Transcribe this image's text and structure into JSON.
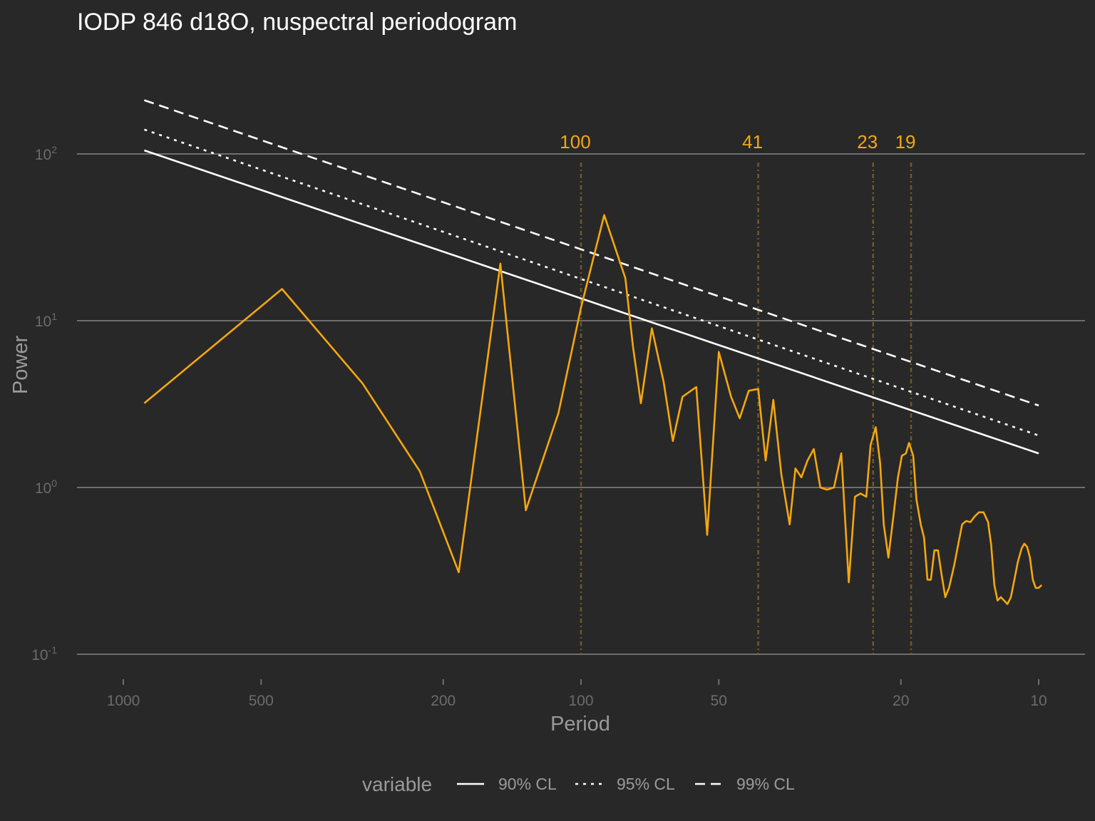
{
  "chart_data": {
    "type": "line",
    "title": "IODP 846 d18O, nuspectral periodogram",
    "xlabel": "Period",
    "ylabel": "Power",
    "x_scale": "reversed-log",
    "y_scale": "log",
    "xlim": [
      1200,
      9
    ],
    "ylim": [
      0.08,
      320
    ],
    "x_ticks": [
      {
        "value": 1000,
        "label": "1000"
      },
      {
        "value": 500,
        "label": "500"
      },
      {
        "value": 200,
        "label": "200"
      },
      {
        "value": 100,
        "label": "100"
      },
      {
        "value": 50,
        "label": "50"
      },
      {
        "value": 20,
        "label": "20"
      },
      {
        "value": 10,
        "label": "10"
      }
    ],
    "y_ticks": [
      {
        "value": 100,
        "base": "10",
        "exp": "2"
      },
      {
        "value": 10,
        "base": "10",
        "exp": "1"
      },
      {
        "value": 1,
        "base": "10",
        "exp": "0"
      },
      {
        "value": 0.1,
        "base": "10",
        "exp": "-1"
      }
    ],
    "reference_periods": [
      {
        "value": 100,
        "label": "100"
      },
      {
        "value": 41,
        "label": "41"
      },
      {
        "value": 23,
        "label": "23"
      },
      {
        "value": 19,
        "label": "19"
      }
    ],
    "periodogram": {
      "color": "#f5a70f",
      "points": [
        [
          900,
          3.2
        ],
        [
          450,
          15.5
        ],
        [
          300,
          4.2
        ],
        [
          225,
          1.25
        ],
        [
          185,
          0.31
        ],
        [
          150,
          22
        ],
        [
          132,
          0.73
        ],
        [
          112,
          2.8
        ],
        [
          100,
          12
        ],
        [
          89,
          43
        ],
        [
          80,
          18
        ],
        [
          77,
          7
        ],
        [
          74,
          3.2
        ],
        [
          70,
          9
        ],
        [
          66,
          4.3
        ],
        [
          63,
          1.9
        ],
        [
          60,
          3.5
        ],
        [
          56,
          4.0
        ],
        [
          53,
          0.52
        ],
        [
          50,
          6.5
        ],
        [
          47,
          3.5
        ],
        [
          45,
          2.6
        ],
        [
          43,
          3.8
        ],
        [
          41,
          3.9
        ],
        [
          39.5,
          1.45
        ],
        [
          38,
          3.35
        ],
        [
          36.5,
          1.2
        ],
        [
          35,
          0.6
        ],
        [
          34,
          1.3
        ],
        [
          33,
          1.15
        ],
        [
          32,
          1.45
        ],
        [
          31,
          1.7
        ],
        [
          30,
          1.0
        ],
        [
          29,
          0.97
        ],
        [
          28,
          1.0
        ],
        [
          27,
          1.6
        ],
        [
          26,
          0.27
        ],
        [
          25.2,
          0.88
        ],
        [
          24.5,
          0.92
        ],
        [
          23.8,
          0.88
        ],
        [
          23.3,
          1.8
        ],
        [
          22.7,
          2.3
        ],
        [
          22.2,
          1.4
        ],
        [
          21.8,
          0.6
        ],
        [
          21.3,
          0.38
        ],
        [
          20.8,
          0.65
        ],
        [
          20.3,
          1.15
        ],
        [
          19.9,
          1.55
        ],
        [
          19.5,
          1.6
        ],
        [
          19.2,
          1.85
        ],
        [
          18.8,
          1.55
        ],
        [
          18.5,
          0.85
        ],
        [
          18.1,
          0.6
        ],
        [
          17.8,
          0.5
        ],
        [
          17.5,
          0.28
        ],
        [
          17.2,
          0.28
        ],
        [
          16.9,
          0.42
        ],
        [
          16.6,
          0.42
        ],
        [
          16.3,
          0.3
        ],
        [
          16.0,
          0.22
        ],
        [
          15.7,
          0.25
        ],
        [
          15.3,
          0.34
        ],
        [
          15.0,
          0.45
        ],
        [
          14.7,
          0.6
        ],
        [
          14.4,
          0.63
        ],
        [
          14.1,
          0.62
        ],
        [
          13.8,
          0.67
        ],
        [
          13.5,
          0.71
        ],
        [
          13.2,
          0.71
        ],
        [
          12.9,
          0.62
        ],
        [
          12.7,
          0.45
        ],
        [
          12.5,
          0.26
        ],
        [
          12.3,
          0.21
        ],
        [
          12.1,
          0.22
        ],
        [
          11.9,
          0.21
        ],
        [
          11.7,
          0.2
        ],
        [
          11.5,
          0.22
        ],
        [
          11.3,
          0.28
        ],
        [
          11.1,
          0.36
        ],
        [
          10.9,
          0.43
        ],
        [
          10.75,
          0.46
        ],
        [
          10.6,
          0.44
        ],
        [
          10.45,
          0.38
        ],
        [
          10.3,
          0.28
        ],
        [
          10.15,
          0.25
        ],
        [
          10.0,
          0.25
        ],
        [
          9.85,
          0.26
        ]
      ]
    },
    "series": [
      {
        "name": "90% CL",
        "dash": "",
        "from": [
          900,
          105
        ],
        "to": [
          10,
          1.6
        ]
      },
      {
        "name": "95% CL",
        "dash": "4 7",
        "from": [
          900,
          140
        ],
        "to": [
          10,
          2.05
        ]
      },
      {
        "name": "99% CL",
        "dash": "14 8",
        "from": [
          900,
          210
        ],
        "to": [
          10,
          3.1
        ]
      }
    ],
    "legend": {
      "position": "bottom",
      "title": "variable"
    },
    "grid": "horizontal-major-only",
    "colors": {
      "background": "#282828",
      "grid": "#6e6e6e",
      "line": "#f5a70f",
      "confidence": "#ffffff",
      "reference": "#6e5b2a"
    }
  }
}
